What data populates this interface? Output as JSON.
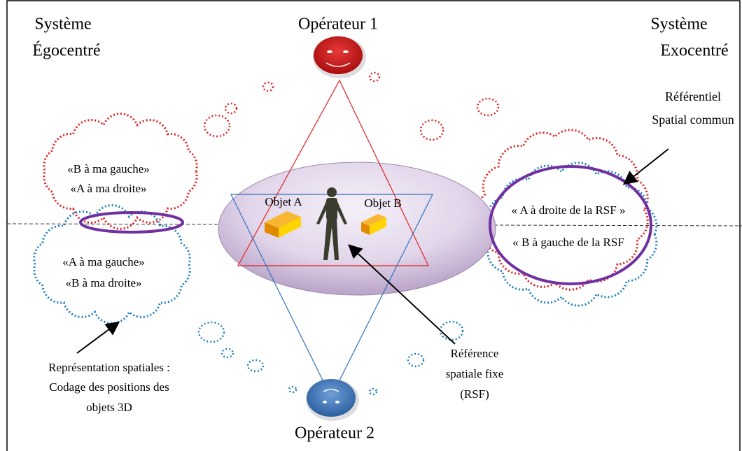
{
  "labels": {
    "ego": [
      "Système",
      "Égocentré"
    ],
    "exo": [
      "Système",
      "Exocentré"
    ],
    "operator1": "Opérateur 1",
    "operator2": "Opérateur 2",
    "common_frame": [
      "Référentiel",
      "Spatial commun"
    ],
    "ego_red": [
      "«B à ma gauche»",
      "«A à ma droite»"
    ],
    "ego_blue": [
      "«A à ma gauche»",
      "«B à ma droite»"
    ],
    "object_a": "Objet A",
    "object_b": "Objet B",
    "exo_statements": [
      "« A à droite de la RSF »",
      "« B à gauche de la RSF"
    ],
    "representation": [
      "Représentation spatiales :",
      "Codage des positions des",
      "objets 3D"
    ],
    "rsf": [
      "Référence",
      "spatiale fixe",
      "(RSF)"
    ]
  }
}
